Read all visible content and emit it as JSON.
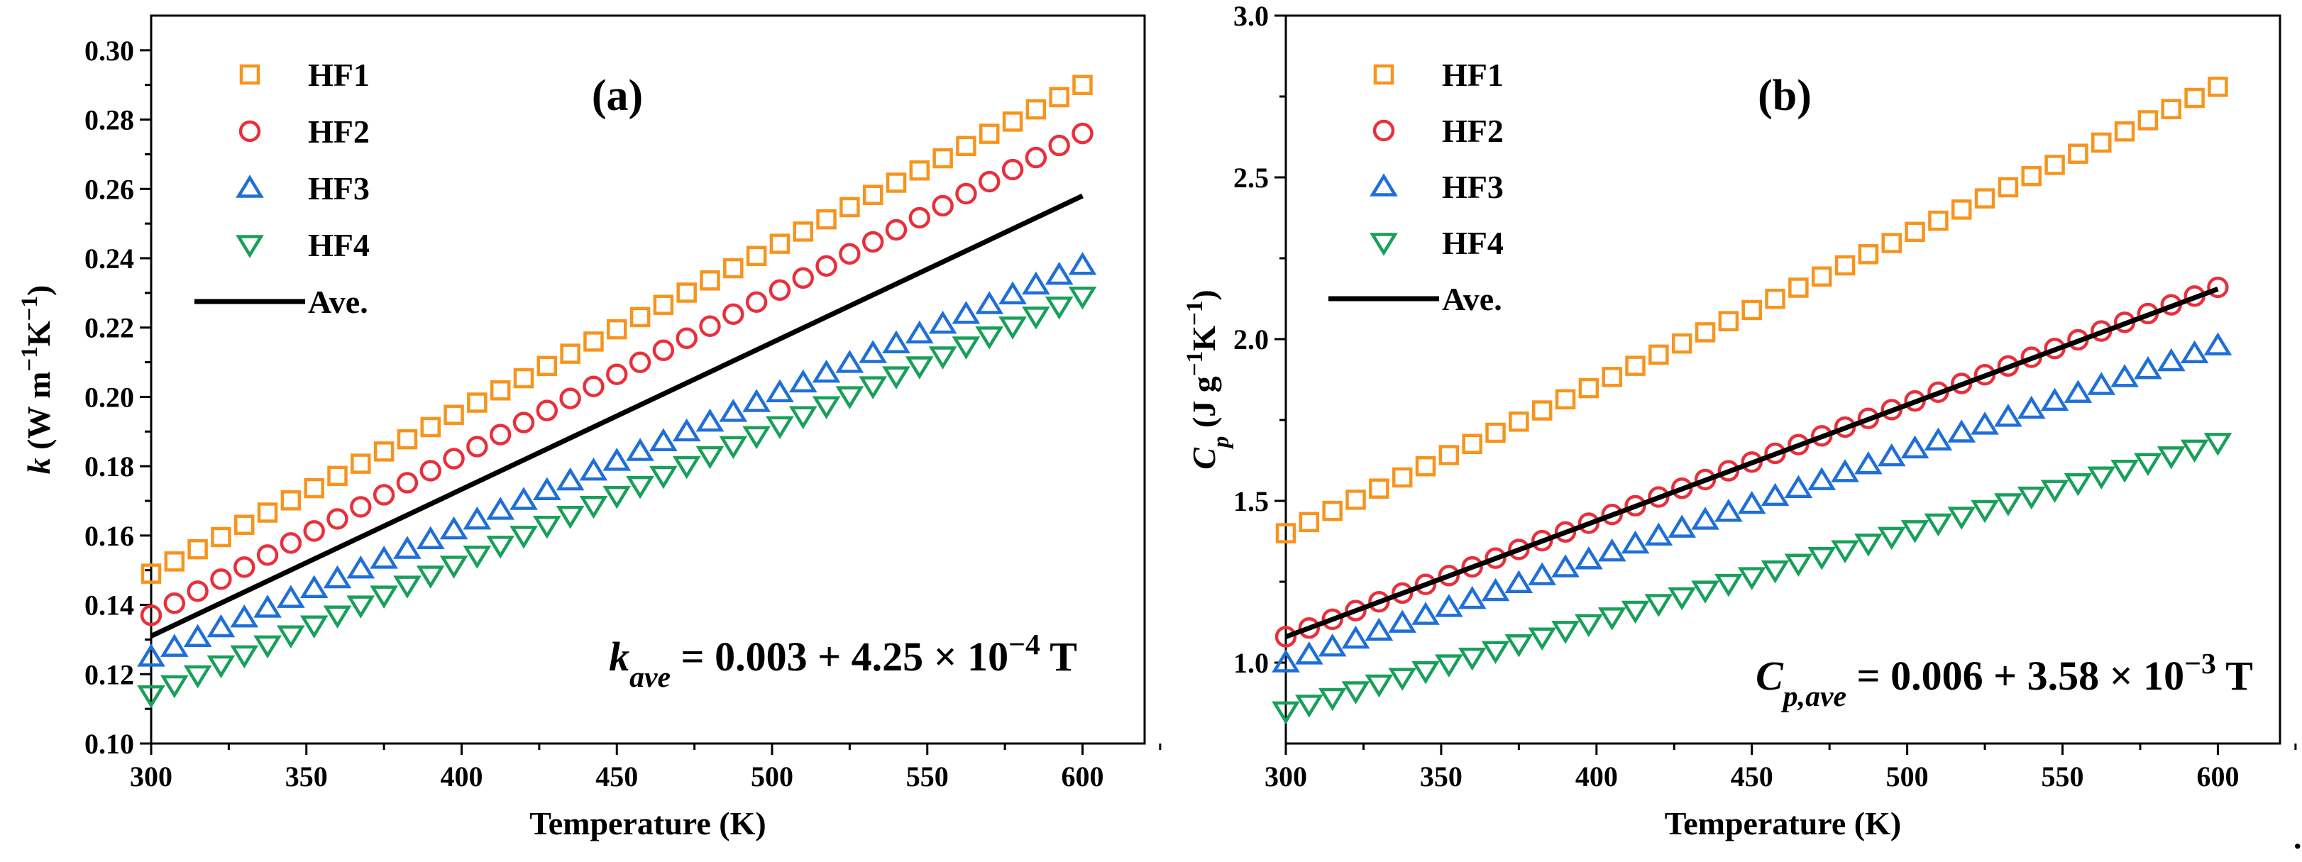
{
  "chart_data": [
    {
      "type": "scatter",
      "panel_label": "(a)",
      "xlabel": "Temperature (K)",
      "ylabel": {
        "parts": [
          {
            "t": "k",
            "style": "italic"
          },
          {
            "t": " (W m"
          },
          {
            "t": "−1",
            "sup": true
          },
          {
            "t": "K"
          },
          {
            "t": "−1",
            "sup": true
          },
          {
            "t": ")"
          }
        ]
      },
      "xlim": [
        300,
        620
      ],
      "ylim": [
        0.1,
        0.31
      ],
      "x_ticks": [
        "300",
        "350",
        "400",
        "450",
        "500",
        "550",
        "600"
      ],
      "y_ticks": [
        "0.10",
        "0.12",
        "0.14",
        "0.16",
        "0.18",
        "0.20",
        "0.22",
        "0.24",
        "0.26",
        "0.28",
        "0.30"
      ],
      "x_range": [
        300,
        600
      ],
      "x_step": 7.5,
      "series": [
        {
          "name": "HF1",
          "marker": "square",
          "color": "#F7941D",
          "y_start": 0.149,
          "y_end": 0.29
        },
        {
          "name": "HF2",
          "marker": "circle",
          "color": "#E8303B",
          "y_start": 0.137,
          "y_end": 0.276
        },
        {
          "name": "HF3",
          "marker": "triangle-up",
          "color": "#1F6FD8",
          "y_start": 0.125,
          "y_end": 0.238
        },
        {
          "name": "HF4",
          "marker": "triangle-down",
          "color": "#18A05A",
          "y_start": 0.114,
          "y_end": 0.229
        },
        {
          "name": "Ave.",
          "line": true,
          "color": "#000000",
          "y_start": 0.131,
          "y_end": 0.258
        }
      ],
      "equation": {
        "parts": [
          {
            "t": "k",
            "style": "italic"
          },
          {
            "t": "ave",
            "style": "italic",
            "sub": true
          },
          {
            "t": " = 0.003 + 4.25 × 10"
          },
          {
            "t": "−4",
            "sup": true
          },
          {
            "t": " T"
          }
        ]
      },
      "legend": "top-left",
      "grid": false
    },
    {
      "type": "scatter",
      "panel_label": "(b)",
      "xlabel": "Temperature (K)",
      "ylabel": {
        "parts": [
          {
            "t": "C",
            "style": "italic"
          },
          {
            "t": "p",
            "style": "italic",
            "sub": true
          },
          {
            "t": " (J g"
          },
          {
            "t": "−1",
            "sup": true
          },
          {
            "t": "K"
          },
          {
            "t": "−1",
            "sup": true
          },
          {
            "t": ")"
          }
        ]
      },
      "xlim": [
        300,
        620
      ],
      "ylim": [
        0.75,
        3.0
      ],
      "x_ticks": [
        "300",
        "350",
        "400",
        "450",
        "500",
        "550",
        "600"
      ],
      "y_ticks": [
        "1.0",
        "1.5",
        "2.0",
        "2.5",
        "3.0"
      ],
      "x_range": [
        300,
        600
      ],
      "x_step": 7.5,
      "series": [
        {
          "name": "HF1",
          "marker": "square",
          "color": "#F7941D",
          "y_start": 1.4,
          "y_end": 2.78
        },
        {
          "name": "HF2",
          "marker": "circle",
          "color": "#E8303B",
          "y_start": 1.08,
          "y_end": 2.16
        },
        {
          "name": "HF3",
          "marker": "triangle-up",
          "color": "#1F6FD8",
          "y_start": 1.0,
          "y_end": 1.98
        },
        {
          "name": "HF4",
          "marker": "triangle-down",
          "color": "#18A05A",
          "y_start": 0.85,
          "y_end": 1.68
        },
        {
          "name": "Ave.",
          "line": true,
          "color": "#000000",
          "y_start": 1.08,
          "y_end": 2.155
        }
      ],
      "equation": {
        "parts": [
          {
            "t": "C",
            "style": "italic"
          },
          {
            "t": "p,ave",
            "style": "italic",
            "sub": true
          },
          {
            "t": " = 0.006 + 3.58 × 10"
          },
          {
            "t": "−3",
            "sup": true
          },
          {
            "t": " T"
          }
        ]
      },
      "legend": "top-left",
      "grid": false
    }
  ],
  "trailing_mark": "."
}
